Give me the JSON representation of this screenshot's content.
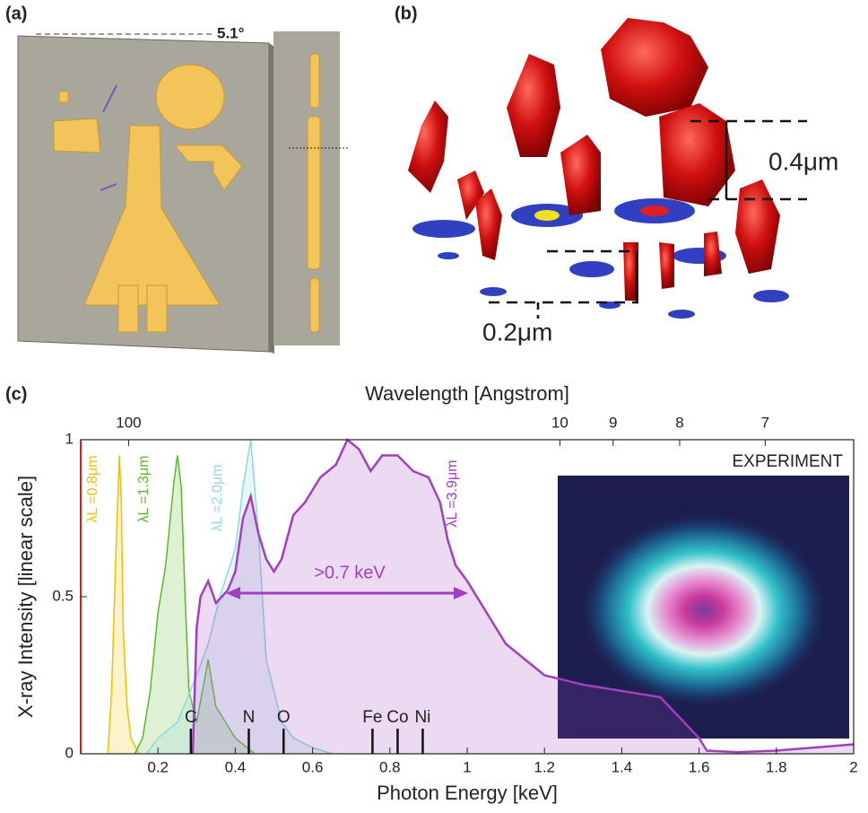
{
  "panels": {
    "a": "(a)",
    "b": "(b)",
    "c": "(c)"
  },
  "panel_a": {
    "angle": "5.1°"
  },
  "panel_b": {
    "scale_large": "0.4μm",
    "scale_small": "0.2μm"
  },
  "chart_data": {
    "type": "line",
    "top_axis_label": "Wavelength [Angstrom]",
    "x_label": "Photon Energy [keV]",
    "y_label": "X-ray Intensity [linear scale]",
    "xlim": [
      0,
      2
    ],
    "ylim": [
      0,
      1
    ],
    "xticks": [
      0.2,
      0.4,
      0.6,
      0.8,
      1,
      1.2,
      1.4,
      1.6,
      1.8,
      2
    ],
    "yticks": [
      0,
      0.5,
      1
    ],
    "top_ticks": [
      100,
      10,
      9,
      8,
      7
    ],
    "inset_label": "EXPERIMENT",
    "arrow_label": ">0.7 keV",
    "elements": [
      {
        "label": "C",
        "x": 0.285
      },
      {
        "label": "N",
        "x": 0.435
      },
      {
        "label": "O",
        "x": 0.525
      },
      {
        "label": "Fe",
        "x": 0.755
      },
      {
        "label": "Co",
        "x": 0.82
      },
      {
        "label": "Ni",
        "x": 0.885
      }
    ],
    "series": [
      {
        "name": "λL =0.8μm",
        "color": "#f0c000",
        "x": [
          0.07,
          0.08,
          0.09,
          0.1,
          0.105,
          0.11,
          0.12,
          0.13,
          0.15
        ],
        "values": [
          0,
          0.2,
          0.6,
          0.95,
          0.8,
          0.4,
          0.15,
          0.05,
          0
        ]
      },
      {
        "name": "λL =1.3μm",
        "color": "#5cb82a",
        "x": [
          0.14,
          0.16,
          0.18,
          0.2,
          0.22,
          0.24,
          0.25,
          0.26,
          0.27,
          0.28,
          0.3,
          0.33,
          0.35,
          0.4,
          0.45
        ],
        "values": [
          0,
          0.05,
          0.2,
          0.45,
          0.6,
          0.85,
          0.95,
          0.85,
          0.5,
          0.2,
          0.1,
          0.3,
          0.15,
          0.05,
          0
        ]
      },
      {
        "name": "λL =2.0μm",
        "color": "#8fd8df",
        "x": [
          0.17,
          0.2,
          0.25,
          0.3,
          0.33,
          0.36,
          0.4,
          0.42,
          0.44,
          0.46,
          0.48,
          0.5,
          0.52,
          0.55,
          0.6,
          0.65
        ],
        "values": [
          0,
          0.05,
          0.1,
          0.25,
          0.35,
          0.5,
          0.65,
          0.85,
          1.0,
          0.7,
          0.3,
          0.2,
          0.1,
          0.05,
          0.02,
          0
        ]
      },
      {
        "name": "λL =3.9μm",
        "color": "#a040c0",
        "x": [
          0.29,
          0.3,
          0.31,
          0.33,
          0.35,
          0.38,
          0.4,
          0.42,
          0.44,
          0.46,
          0.48,
          0.5,
          0.52,
          0.55,
          0.58,
          0.62,
          0.66,
          0.69,
          0.72,
          0.75,
          0.78,
          0.82,
          0.86,
          0.9,
          0.93,
          0.95,
          0.97,
          1.0,
          1.05,
          1.1,
          1.15,
          1.2,
          1.3,
          1.4,
          1.5,
          1.6,
          1.62,
          1.7,
          1.8,
          1.9,
          2.0
        ],
        "values": [
          0,
          0.4,
          0.5,
          0.55,
          0.48,
          0.52,
          0.58,
          0.75,
          0.82,
          0.7,
          0.62,
          0.58,
          0.62,
          0.76,
          0.8,
          0.88,
          0.92,
          1.0,
          0.97,
          0.9,
          0.95,
          0.95,
          0.9,
          0.88,
          0.8,
          0.68,
          0.6,
          0.55,
          0.45,
          0.35,
          0.3,
          0.25,
          0.22,
          0.2,
          0.18,
          0.05,
          0.01,
          0.005,
          0.01,
          0.02,
          0.03
        ]
      }
    ]
  }
}
